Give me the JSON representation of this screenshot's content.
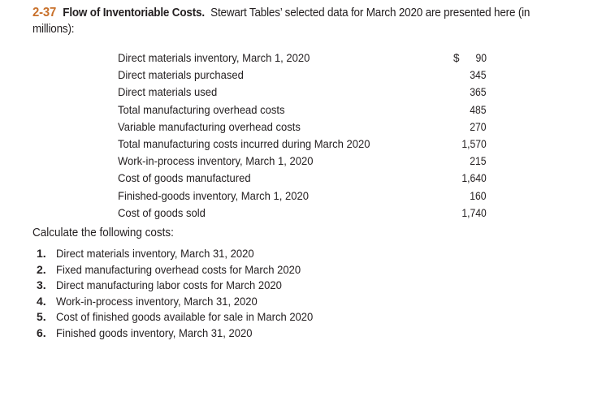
{
  "header": {
    "number": "2-37",
    "title": "Flow of Inventoriable Costs.",
    "intro": "Stewart Tables’ selected data for March 2020 are presented here (in millions):"
  },
  "table": {
    "rows": [
      {
        "label": "Direct materials inventory, March 1, 2020",
        "dollar": "$",
        "value": "90"
      },
      {
        "label": "Direct materials purchased",
        "dollar": "",
        "value": "345"
      },
      {
        "label": "Direct materials used",
        "dollar": "",
        "value": "365"
      },
      {
        "label": "Total manufacturing overhead costs",
        "dollar": "",
        "value": "485"
      },
      {
        "label": "Variable manufacturing overhead costs",
        "dollar": "",
        "value": "270"
      },
      {
        "label": "Total manufacturing costs incurred during March 2020",
        "dollar": "",
        "value": "1,570"
      },
      {
        "label": "Work-in-process inventory, March 1, 2020",
        "dollar": "",
        "value": "215"
      },
      {
        "label": "Cost of goods manufactured",
        "dollar": "",
        "value": "1,640"
      },
      {
        "label": "Finished-goods inventory, March 1, 2020",
        "dollar": "",
        "value": "160"
      },
      {
        "label": "Cost of goods sold",
        "dollar": "",
        "value": "1,740"
      }
    ]
  },
  "instructions": "Calculate the following costs:",
  "tasks": [
    {
      "num": "1.",
      "text": "Direct materials inventory, March 31, 2020"
    },
    {
      "num": "2.",
      "text": "Fixed manufacturing overhead costs for March 2020"
    },
    {
      "num": "3.",
      "text": "Direct manufacturing labor costs for March 2020"
    },
    {
      "num": "4.",
      "text": "Work-in-process inventory, March 31, 2020"
    },
    {
      "num": "5.",
      "text": "Cost of finished goods available for sale in March 2020"
    },
    {
      "num": "6.",
      "text": "Finished goods inventory, March 31, 2020"
    }
  ],
  "colors": {
    "accent": "#c8702a",
    "text": "#231f20"
  }
}
